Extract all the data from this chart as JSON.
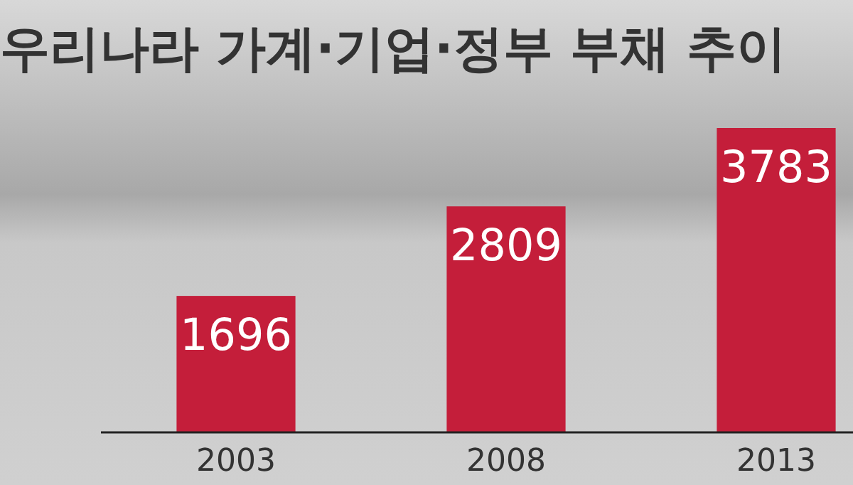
{
  "chart_data": {
    "type": "bar",
    "title": "우리나라 가계·기업·정부 부채 추이",
    "categories": [
      "2003",
      "2008",
      "2013"
    ],
    "values": [
      1696,
      2809,
      3783
    ],
    "color": "#c41e3a",
    "data_labels": true
  }
}
